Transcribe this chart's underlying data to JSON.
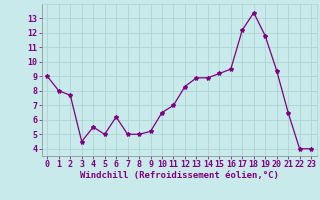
{
  "x": [
    0,
    1,
    2,
    3,
    4,
    5,
    6,
    7,
    8,
    9,
    10,
    11,
    12,
    13,
    14,
    15,
    16,
    17,
    18,
    19,
    20,
    21,
    22,
    23
  ],
  "y": [
    9.0,
    8.0,
    7.7,
    4.5,
    5.5,
    5.0,
    6.2,
    5.0,
    5.0,
    5.2,
    6.5,
    7.0,
    8.3,
    8.9,
    8.9,
    9.2,
    9.5,
    12.2,
    13.4,
    11.8,
    9.4,
    6.5,
    4.0,
    4.0
  ],
  "line_color": "#800080",
  "marker": "*",
  "marker_size": 3,
  "bg_color": "#c8eaea",
  "grid_color": "#aed4d4",
  "text_color": "#800080",
  "xlabel": "Windchill (Refroidissement éolien,°C)",
  "xlabel_fontsize": 6.5,
  "tick_fontsize": 6,
  "ylim": [
    3.5,
    14.0
  ],
  "yticks": [
    4,
    5,
    6,
    7,
    8,
    9,
    10,
    11,
    12,
    13
  ],
  "xlim": [
    -0.5,
    23.5
  ],
  "xticks": [
    0,
    1,
    2,
    3,
    4,
    5,
    6,
    7,
    8,
    9,
    10,
    11,
    12,
    13,
    14,
    15,
    16,
    17,
    18,
    19,
    20,
    21,
    22,
    23
  ]
}
